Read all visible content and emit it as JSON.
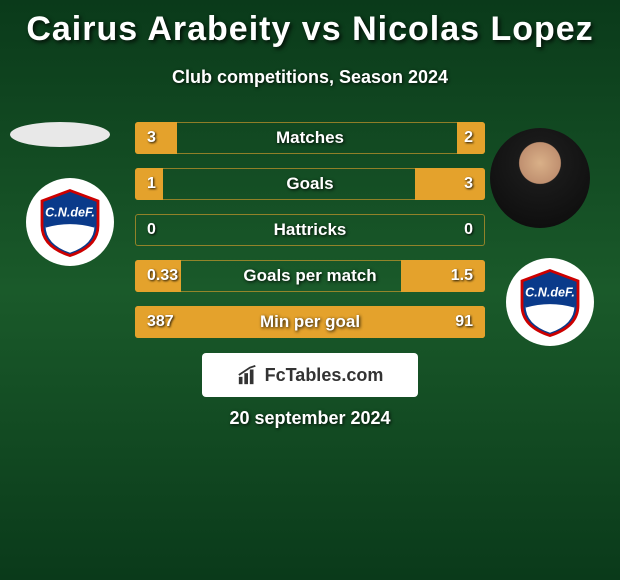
{
  "title": "Cairus Arabeity vs Nicolas Lopez",
  "subtitle": "Club competitions, Season 2024",
  "date": "20 september 2024",
  "watermark": "FcTables.com",
  "colors": {
    "bar_left": "#e4a22c",
    "bar_right": "#e4a22c",
    "row_bg": "transparent"
  },
  "rows": [
    {
      "label": "Matches",
      "left_val": "3",
      "right_val": "2",
      "left_pct": 12,
      "right_pct": 8
    },
    {
      "label": "Goals",
      "left_val": "1",
      "right_val": "3",
      "left_pct": 8,
      "right_pct": 20
    },
    {
      "label": "Hattricks",
      "left_val": "0",
      "right_val": "0",
      "left_pct": 0,
      "right_pct": 0
    },
    {
      "label": "Goals per match",
      "left_val": "0.33",
      "right_val": "1.5",
      "left_pct": 13,
      "right_pct": 24
    },
    {
      "label": "Min per goal",
      "left_val": "387",
      "right_val": "91",
      "left_pct": 100,
      "right_pct": 24
    }
  ]
}
